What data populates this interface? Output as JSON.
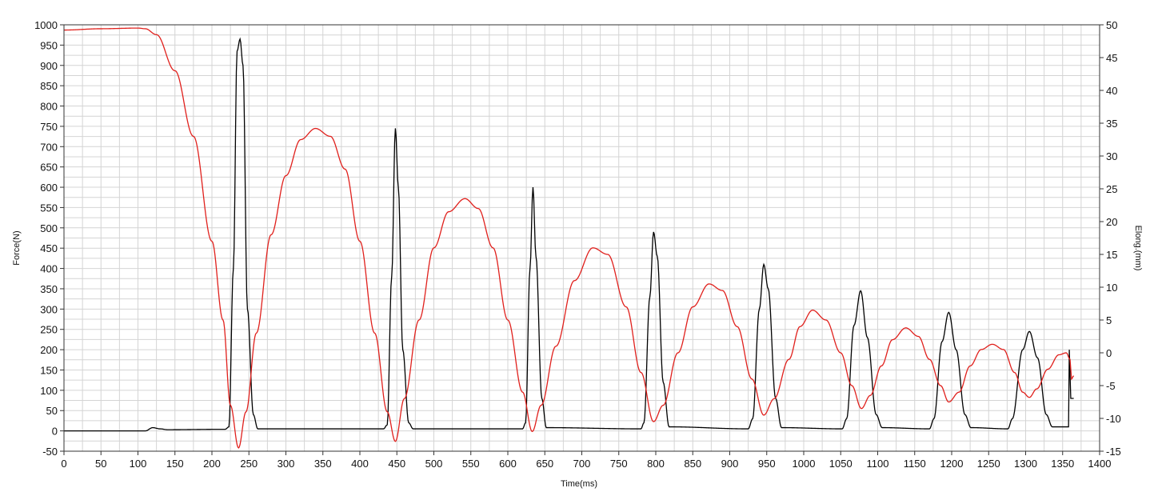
{
  "chart_data": {
    "type": "line",
    "xlabel": "Time(ms)",
    "ylabel_left": "Force(N)",
    "ylabel_right": "Elong.(mm)",
    "xlim": [
      0,
      1400
    ],
    "ylim_left": [
      -50,
      1000
    ],
    "ylim_right": [
      -15,
      50
    ],
    "x_ticks": [
      0,
      50,
      100,
      150,
      200,
      250,
      300,
      350,
      400,
      450,
      500,
      550,
      600,
      650,
      700,
      750,
      800,
      850,
      900,
      950,
      1000,
      1050,
      1100,
      1150,
      1200,
      1250,
      1300,
      1350,
      1400
    ],
    "y_left_ticks": [
      -50,
      0,
      50,
      100,
      150,
      200,
      250,
      300,
      350,
      400,
      450,
      500,
      550,
      600,
      650,
      700,
      750,
      800,
      850,
      900,
      950,
      1000
    ],
    "y_right_ticks": [
      -15,
      -10,
      -5,
      0,
      5,
      10,
      15,
      20,
      25,
      30,
      35,
      40,
      45,
      50
    ],
    "grid": true,
    "series": [
      {
        "color": "#000000",
        "axis": "left",
        "baseline": 3,
        "points": [
          [
            0,
            0
          ],
          [
            110,
            0
          ],
          [
            120,
            8
          ],
          [
            130,
            5
          ],
          [
            140,
            3
          ],
          [
            218,
            4
          ],
          [
            223,
            10
          ],
          [
            229,
            400
          ],
          [
            234,
            935
          ],
          [
            238,
            965
          ],
          [
            242,
            900
          ],
          [
            248,
            300
          ],
          [
            256,
            40
          ],
          [
            262,
            5
          ],
          [
            432,
            5
          ],
          [
            437,
            15
          ],
          [
            443,
            380
          ],
          [
            448,
            745
          ],
          [
            452,
            600
          ],
          [
            458,
            200
          ],
          [
            466,
            20
          ],
          [
            472,
            5
          ],
          [
            620,
            5
          ],
          [
            624,
            20
          ],
          [
            630,
            400
          ],
          [
            634,
            600
          ],
          [
            638,
            430
          ],
          [
            646,
            80
          ],
          [
            652,
            8
          ],
          [
            780,
            5
          ],
          [
            784,
            20
          ],
          [
            792,
            330
          ],
          [
            797,
            490
          ],
          [
            802,
            430
          ],
          [
            810,
            120
          ],
          [
            818,
            10
          ],
          [
            925,
            5
          ],
          [
            931,
            30
          ],
          [
            940,
            300
          ],
          [
            946,
            410
          ],
          [
            952,
            350
          ],
          [
            962,
            80
          ],
          [
            970,
            8
          ],
          [
            1052,
            5
          ],
          [
            1058,
            30
          ],
          [
            1068,
            260
          ],
          [
            1077,
            345
          ],
          [
            1086,
            230
          ],
          [
            1098,
            40
          ],
          [
            1106,
            8
          ],
          [
            1170,
            5
          ],
          [
            1176,
            30
          ],
          [
            1187,
            220
          ],
          [
            1196,
            292
          ],
          [
            1206,
            200
          ],
          [
            1218,
            40
          ],
          [
            1226,
            8
          ],
          [
            1276,
            5
          ],
          [
            1282,
            30
          ],
          [
            1296,
            200
          ],
          [
            1305,
            245
          ],
          [
            1316,
            180
          ],
          [
            1328,
            40
          ],
          [
            1336,
            10
          ],
          [
            1358,
            10
          ],
          [
            1359,
            200
          ],
          [
            1361,
            80
          ],
          [
            1365,
            80
          ]
        ]
      },
      {
        "color": "#e0201c",
        "axis": "right",
        "points": [
          [
            0,
            49.2
          ],
          [
            50,
            49.4
          ],
          [
            100,
            49.5
          ],
          [
            110,
            49.4
          ],
          [
            125,
            48.5
          ],
          [
            150,
            43
          ],
          [
            175,
            33
          ],
          [
            200,
            17
          ],
          [
            215,
            5
          ],
          [
            225,
            -8
          ],
          [
            236,
            -14.5
          ],
          [
            246,
            -9
          ],
          [
            260,
            3
          ],
          [
            280,
            18
          ],
          [
            300,
            27
          ],
          [
            320,
            32.5
          ],
          [
            340,
            34.2
          ],
          [
            360,
            33
          ],
          [
            380,
            28
          ],
          [
            400,
            17
          ],
          [
            420,
            3
          ],
          [
            437,
            -9
          ],
          [
            448,
            -13.5
          ],
          [
            460,
            -7
          ],
          [
            480,
            5
          ],
          [
            500,
            16
          ],
          [
            520,
            21.5
          ],
          [
            542,
            23.5
          ],
          [
            560,
            22
          ],
          [
            580,
            16
          ],
          [
            600,
            5
          ],
          [
            620,
            -6
          ],
          [
            633,
            -12
          ],
          [
            645,
            -8
          ],
          [
            665,
            1
          ],
          [
            690,
            11
          ],
          [
            715,
            16
          ],
          [
            735,
            15
          ],
          [
            760,
            7
          ],
          [
            780,
            -3
          ],
          [
            797,
            -10.5
          ],
          [
            810,
            -8
          ],
          [
            830,
            0
          ],
          [
            850,
            7
          ],
          [
            872,
            10.5
          ],
          [
            890,
            9.5
          ],
          [
            910,
            4
          ],
          [
            930,
            -4
          ],
          [
            946,
            -9.5
          ],
          [
            960,
            -7
          ],
          [
            980,
            -1
          ],
          [
            995,
            4
          ],
          [
            1012,
            6.5
          ],
          [
            1030,
            5
          ],
          [
            1050,
            0
          ],
          [
            1065,
            -5
          ],
          [
            1078,
            -8.5
          ],
          [
            1090,
            -6.5
          ],
          [
            1105,
            -2
          ],
          [
            1120,
            2
          ],
          [
            1138,
            3.8
          ],
          [
            1155,
            2.5
          ],
          [
            1170,
            -1
          ],
          [
            1185,
            -5
          ],
          [
            1196,
            -7.5
          ],
          [
            1210,
            -6
          ],
          [
            1225,
            -2
          ],
          [
            1240,
            0.5
          ],
          [
            1255,
            1.3
          ],
          [
            1270,
            0.5
          ],
          [
            1285,
            -3
          ],
          [
            1296,
            -6
          ],
          [
            1305,
            -6.8
          ],
          [
            1315,
            -5.5
          ],
          [
            1330,
            -2.5
          ],
          [
            1345,
            -0.3
          ],
          [
            1355,
            0
          ],
          [
            1360,
            -1
          ],
          [
            1362,
            -4
          ],
          [
            1365,
            -3.5
          ]
        ]
      }
    ]
  }
}
